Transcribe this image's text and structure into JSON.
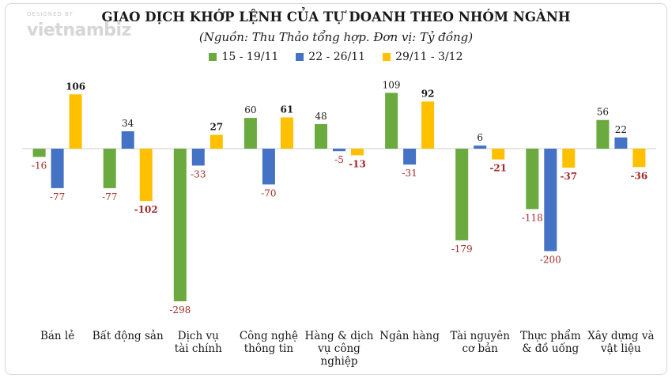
{
  "logo": {
    "tagline": "DESIGNED BY",
    "word": "vietnambiz"
  },
  "chart_data": {
    "type": "bar",
    "title": "GIAO DỊCH KHỚP LỆNH CỦA TỰ DOANH THEO NHÓM NGÀNH",
    "subtitle": "(Nguồn: Thu Thảo tổng hợp. Đơn vị: Tỷ đồng)",
    "legend_position": "top-center",
    "grid": false,
    "ylim": [
      -300,
      110
    ],
    "categories": [
      "Bán lẻ",
      "Bất động sản",
      "Dịch vụ\ntài chính",
      "Công nghệ\nthông tin",
      "Hàng & dịch\nvụ công\nnghiệp",
      "Ngân hàng",
      "Tài nguyên\ncơ bản",
      "Thực phẩm\n& đồ uống",
      "Xây dựng và\nvật liệu"
    ],
    "series": [
      {
        "name": "15 - 19/11",
        "color": "#6aaa3e",
        "values": [
          -16,
          -77,
          -298,
          60,
          48,
          109,
          -179,
          -118,
          56
        ]
      },
      {
        "name": "22 - 26/11",
        "color": "#4472c4",
        "values": [
          -77,
          34,
          -33,
          -70,
          -5,
          -31,
          6,
          -200,
          22
        ]
      },
      {
        "name": "29/11 - 3/12",
        "color": "#ffc000",
        "values": [
          106,
          -102,
          27,
          61,
          -13,
          92,
          -21,
          -37,
          -36
        ]
      }
    ],
    "label_colors": {
      "positive": "#1a1a1a",
      "negative": "#a52a2a"
    }
  }
}
